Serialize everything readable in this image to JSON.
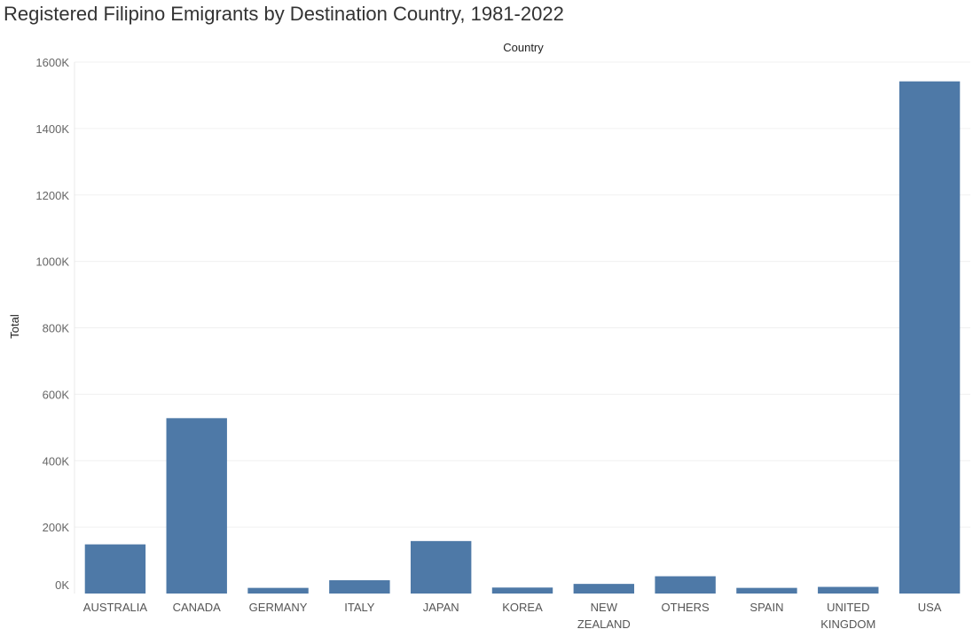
{
  "chart_data": {
    "type": "bar",
    "title": "Registered Filipino Emigrants by Destination Country, 1981-2022",
    "header_label": "Country",
    "ylabel": "Total",
    "categories": [
      "AUSTRALIA",
      "CANADA",
      "GERMANY",
      "ITALY",
      "JAPAN",
      "KOREA",
      "NEW ZEALAND",
      "OTHERS",
      "SPAIN",
      "UNITED KINGDOM",
      "USA"
    ],
    "category_label_lines": [
      [
        "AUSTRALIA"
      ],
      [
        "CANADA"
      ],
      [
        "GERMANY"
      ],
      [
        "ITALY"
      ],
      [
        "JAPAN"
      ],
      [
        "KOREA"
      ],
      [
        "NEW",
        "ZEALAND"
      ],
      [
        "OTHERS"
      ],
      [
        "SPAIN"
      ],
      [
        "UNITED",
        "KINGDOM"
      ],
      [
        "USA"
      ]
    ],
    "series": [
      {
        "values": [
          148000,
          528000,
          17000,
          40000,
          158000,
          18000,
          29000,
          52000,
          17000,
          20000,
          1542000
        ],
        "color": "#4e79a7"
      }
    ],
    "ylim": [
      0,
      1600000
    ],
    "yticks": [
      0,
      200000,
      400000,
      600000,
      800000,
      1000000,
      1200000,
      1400000,
      1600000
    ],
    "ytick_labels": [
      "0K",
      "200K",
      "400K",
      "600K",
      "800K",
      "1000K",
      "1200K",
      "1400K",
      "1600K"
    ],
    "grid": true
  }
}
